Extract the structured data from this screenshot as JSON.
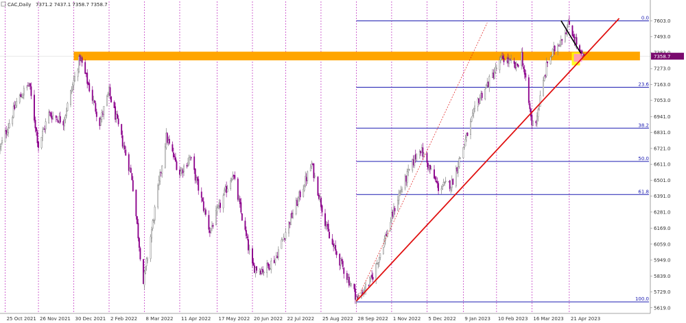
{
  "header": {
    "symbol": "CAC,Daily",
    "ohlc": "7371.2 7437.1 7358.7 7358.7"
  },
  "price_tag": {
    "value": "7358.7"
  },
  "colors": {
    "bull_candle": "#7f7f7f",
    "bear_candle": "#8b008b",
    "fib_line": "#1a1ab0",
    "trend_line": "#e01010",
    "resistance_zone": "#ffa500",
    "down_trend": "#000000",
    "vertical_grid": "#b000b0",
    "price_tag_bg": "#7a0a6e",
    "highlight_box": "#ffff00",
    "highlight_pink": "#ff88dd"
  },
  "chart_data": {
    "type": "candlestick",
    "title": "",
    "xlabel": "",
    "ylabel": "",
    "ylim": [
      5580,
      7700
    ],
    "xlim": [
      "2021-10-20",
      "2023-07-08"
    ],
    "x_ticks": [
      {
        "date": "2021-10-25",
        "label": "25 Oct 2021"
      },
      {
        "date": "2021-11-26",
        "label": "26 Nov 2021"
      },
      {
        "date": "2021-12-30",
        "label": "30 Dec 2021"
      },
      {
        "date": "2022-02-02",
        "label": "2 Feb 2022"
      },
      {
        "date": "2022-03-08",
        "label": "8 Mar 2022"
      },
      {
        "date": "2022-04-11",
        "label": "11 Apr 2022"
      },
      {
        "date": "2022-05-17",
        "label": "17 May 2022"
      },
      {
        "date": "2022-06-20",
        "label": "20 Jun 2022"
      },
      {
        "date": "2022-07-22",
        "label": "22 Jul 2022"
      },
      {
        "date": "2022-08-25",
        "label": "25 Aug 2022"
      },
      {
        "date": "2022-09-28",
        "label": "28 Sep 2022"
      },
      {
        "date": "2022-11-01",
        "label": "1 Nov 2022"
      },
      {
        "date": "2022-12-05",
        "label": "5 Dec 2022"
      },
      {
        "date": "2023-01-09",
        "label": "9 Jan 2023"
      },
      {
        "date": "2023-02-10",
        "label": "10 Feb 2023"
      },
      {
        "date": "2023-03-16",
        "label": "16 Mar 2023"
      },
      {
        "date": "2023-04-21",
        "label": "21 Apr 2023"
      }
    ],
    "y_ticks": [
      "7603.0",
      "7493.0",
      "7383.0",
      "7273.0",
      "7163.0",
      "7053.0",
      "6941.0",
      "6831.0",
      "6721.0",
      "6611.0",
      "6501.0",
      "6391.0",
      "6281.0",
      "6169.0",
      "6059.0",
      "5949.0",
      "5839.0",
      "5729.0",
      "5619.0"
    ],
    "fib_levels": [
      {
        "label": "0.0",
        "value": 7603.0
      },
      {
        "label": "23.6",
        "value": 7144
      },
      {
        "label": "38.2",
        "value": 6861
      },
      {
        "label": "50.0",
        "value": 6631
      },
      {
        "label": "61.8",
        "value": 6402
      },
      {
        "label": "100.0",
        "value": 5660
      }
    ],
    "resistance_zone": {
      "low": 7330,
      "high": 7390,
      "from": "2021-12-30",
      "to": "2023-06-28"
    },
    "trend_line": {
      "start": {
        "date": "2022-09-28",
        "value": 5665
      },
      "end": {
        "date": "2023-06-08",
        "value": 7620
      }
    },
    "dotted_line": {
      "start": {
        "date": "2022-09-28",
        "value": 5665
      },
      "end": {
        "date": "2023-02-01",
        "value": 7590
      }
    },
    "down_trend": {
      "start": {
        "date": "2023-04-13",
        "value": 7605
      },
      "end": {
        "date": "2023-05-02",
        "value": 7380
      }
    },
    "last_price": 7358.7,
    "anchors": [
      {
        "date": "2021-10-20",
        "value": 6720
      },
      {
        "date": "2021-11-05",
        "value": 7040
      },
      {
        "date": "2021-11-17",
        "value": 7170
      },
      {
        "date": "2021-11-26",
        "value": 6740
      },
      {
        "date": "2021-12-06",
        "value": 6960
      },
      {
        "date": "2021-12-20",
        "value": 6910
      },
      {
        "date": "2022-01-05",
        "value": 7350
      },
      {
        "date": "2022-01-24",
        "value": 6900
      },
      {
        "date": "2022-02-02",
        "value": 7110
      },
      {
        "date": "2022-02-24",
        "value": 6520
      },
      {
        "date": "2022-03-07",
        "value": 5790
      },
      {
        "date": "2022-03-29",
        "value": 6800
      },
      {
        "date": "2022-04-11",
        "value": 6550
      },
      {
        "date": "2022-04-21",
        "value": 6660
      },
      {
        "date": "2022-05-10",
        "value": 6150
      },
      {
        "date": "2022-06-01",
        "value": 6550
      },
      {
        "date": "2022-06-20",
        "value": 5900
      },
      {
        "date": "2022-07-01",
        "value": 5880
      },
      {
        "date": "2022-07-12",
        "value": 5960
      },
      {
        "date": "2022-08-16",
        "value": 6610
      },
      {
        "date": "2022-09-02",
        "value": 6100
      },
      {
        "date": "2022-09-29",
        "value": 5680
      },
      {
        "date": "2022-10-13",
        "value": 5820
      },
      {
        "date": "2022-11-08",
        "value": 6400
      },
      {
        "date": "2022-11-28",
        "value": 6730
      },
      {
        "date": "2022-12-16",
        "value": 6450
      },
      {
        "date": "2022-12-29",
        "value": 6480
      },
      {
        "date": "2023-01-23",
        "value": 7050
      },
      {
        "date": "2023-02-16",
        "value": 7350
      },
      {
        "date": "2023-03-01",
        "value": 7280
      },
      {
        "date": "2023-03-06",
        "value": 7370
      },
      {
        "date": "2023-03-16",
        "value": 6890
      },
      {
        "date": "2023-03-20",
        "value": 6920
      },
      {
        "date": "2023-03-31",
        "value": 7320
      },
      {
        "date": "2023-04-21",
        "value": 7580
      },
      {
        "date": "2023-05-03",
        "value": 7350
      },
      {
        "date": "2023-05-05",
        "value": 7358.7
      }
    ]
  }
}
